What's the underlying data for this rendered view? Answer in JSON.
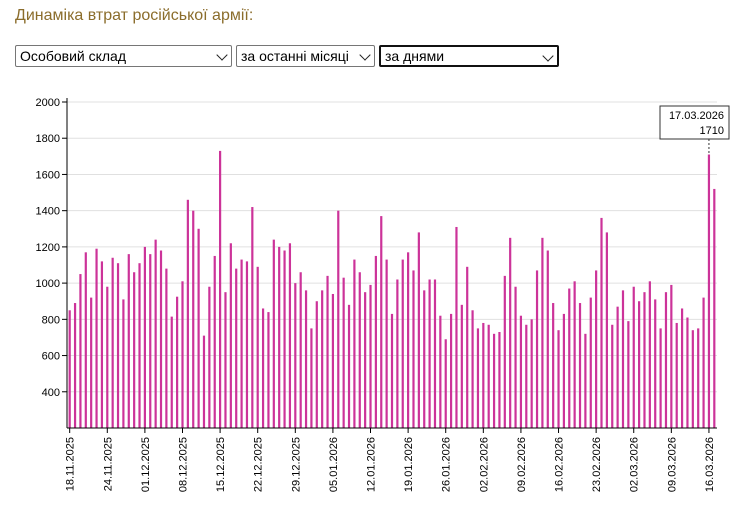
{
  "page": {
    "title": "Динаміка втрат російської армії:",
    "selects": {
      "category": "Особовий склад",
      "period": "за останні місяці",
      "grouping": "за днями"
    }
  },
  "colors": {
    "bar": "#cc3399",
    "grid": "#e0e0e0",
    "axis": "#000000",
    "title": "#8b6d2c"
  },
  "chart_data": {
    "type": "bar",
    "title": "",
    "xlabel": "",
    "ylabel": "",
    "ylim": [
      200,
      2000
    ],
    "yticks": [
      400,
      600,
      800,
      1000,
      1200,
      1400,
      1600,
      1800,
      2000
    ],
    "grid": true,
    "start_date": "18.11.2025",
    "xtick_labels": [
      "18.11.2025",
      "24.11.2025",
      "01.12.2025",
      "08.12.2025",
      "15.12.2025",
      "22.12.2025",
      "29.12.2025",
      "05.01.2026",
      "12.01.2026",
      "19.01.2026",
      "26.01.2026",
      "02.02.2026",
      "09.02.2026",
      "16.02.2026",
      "23.02.2026",
      "02.03.2026",
      "09.03.2026",
      "16.03.2026"
    ],
    "values": [
      850,
      890,
      1050,
      1170,
      920,
      1190,
      1120,
      980,
      1140,
      1110,
      910,
      1160,
      1060,
      1110,
      1200,
      1160,
      1240,
      1180,
      1080,
      815,
      925,
      1010,
      1460,
      1400,
      1300,
      710,
      980,
      1150,
      1730,
      950,
      1220,
      1080,
      1130,
      1120,
      1420,
      1090,
      860,
      840,
      1240,
      1200,
      1180,
      1220,
      1000,
      1060,
      960,
      750,
      900,
      960,
      1040,
      940,
      1400,
      1030,
      880,
      1130,
      1060,
      950,
      990,
      1150,
      1370,
      1130,
      830,
      1020,
      1130,
      1170,
      1070,
      1280,
      960,
      1020,
      1020,
      820,
      690,
      830,
      1310,
      880,
      1090,
      850,
      750,
      780,
      770,
      720,
      730,
      1040,
      1250,
      980,
      820,
      770,
      800,
      1070,
      1250,
      1180,
      890,
      740,
      830,
      970,
      1010,
      890,
      720,
      920,
      1070,
      1360,
      1280,
      770,
      870,
      960,
      790,
      980,
      900,
      950,
      1010,
      910,
      750,
      950,
      990,
      780,
      860,
      810,
      740,
      750,
      920,
      1710,
      1520
    ],
    "annotation": {
      "date": "17.03.2026",
      "value": "1710"
    }
  }
}
